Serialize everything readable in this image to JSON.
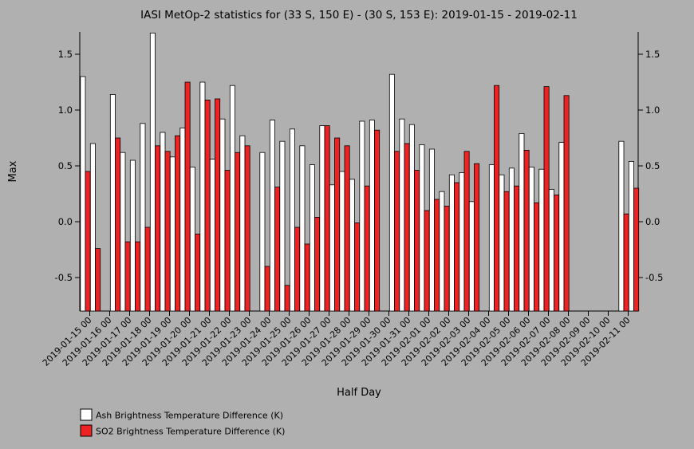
{
  "chart_data": {
    "type": "bar",
    "title": "IASI MetOp-2 statistics for (33 S, 150 E) - (30 S, 153 E): 2019-01-15 - 2019-02-11",
    "xlabel": "Half Day",
    "ylabel": "Max",
    "ylim": [
      -0.8,
      1.7
    ],
    "yticks": [
      -0.5,
      0.0,
      0.5,
      1.0,
      1.5
    ],
    "ytick_labels": [
      "-0.5",
      "0.0",
      "0.5",
      "1.0",
      "1.5"
    ],
    "legend_position": "bottom-left",
    "grid": false,
    "categories": [
      "2019-01-15 00",
      "2019-01-15 12",
      "2019-01-16 00",
      "2019-01-16 12",
      "2019-01-17 00",
      "2019-01-17 12",
      "2019-01-18 00",
      "2019-01-18 12",
      "2019-01-19 00",
      "2019-01-19 12",
      "2019-01-20 00",
      "2019-01-20 12",
      "2019-01-21 00",
      "2019-01-21 12",
      "2019-01-22 00",
      "2019-01-22 12",
      "2019-01-23 00",
      "2019-01-23 12",
      "2019-01-24 00",
      "2019-01-24 12",
      "2019-01-25 00",
      "2019-01-25 12",
      "2019-01-26 00",
      "2019-01-26 12",
      "2019-01-27 00",
      "2019-01-27 12",
      "2019-01-28 00",
      "2019-01-28 12",
      "2019-01-29 00",
      "2019-01-29 12",
      "2019-01-30 00",
      "2019-01-30 12",
      "2019-01-31 00",
      "2019-01-31 12",
      "2019-02-01 00",
      "2019-02-01 12",
      "2019-02-02 00",
      "2019-02-02 12",
      "2019-02-03 00",
      "2019-02-03 12",
      "2019-02-04 00",
      "2019-02-04 12",
      "2019-02-05 00",
      "2019-02-05 12",
      "2019-02-06 00",
      "2019-02-06 12",
      "2019-02-07 00",
      "2019-02-07 12",
      "2019-02-08 00",
      "2019-02-08 12",
      "2019-02-09 00",
      "2019-02-09 12",
      "2019-02-10 00",
      "2019-02-10 12",
      "2019-02-11 00",
      "2019-02-11 12"
    ],
    "tick_labels": [
      "2019-01-15 00",
      "2019-01-16 00",
      "2019-01-17 00",
      "2019-01-18 00",
      "2019-01-19 00",
      "2019-01-20 00",
      "2019-01-21 00",
      "2019-01-22 00",
      "2019-01-23 00",
      "2019-01-24 00",
      "2019-01-25 00",
      "2019-01-26 00",
      "2019-01-27 00",
      "2019-01-28 00",
      "2019-01-29 00",
      "2019-01-30 00",
      "2019-01-31 00",
      "2019-02-01 00",
      "2019-02-02 00",
      "2019-02-03 00",
      "2019-02-04 00",
      "2019-02-05 00",
      "2019-02-06 00",
      "2019-02-07 00",
      "2019-02-08 00",
      "2019-02-09 00",
      "2019-02-10 00",
      "2019-02-11 00"
    ],
    "series": [
      {
        "name": "Ash Brightness Temperature Difference (K)",
        "color": "#ffffff",
        "values": [
          1.3,
          0.7,
          null,
          1.14,
          0.62,
          0.55,
          0.88,
          1.69,
          0.8,
          0.58,
          0.84,
          0.49,
          1.25,
          0.56,
          0.92,
          1.22,
          0.77,
          null,
          0.62,
          0.91,
          0.72,
          0.83,
          0.68,
          0.51,
          0.86,
          0.33,
          0.45,
          0.38,
          0.9,
          0.91,
          null,
          1.32,
          0.92,
          0.87,
          0.69,
          0.65,
          0.27,
          0.42,
          0.44,
          0.18,
          null,
          0.51,
          0.42,
          0.48,
          0.79,
          0.49,
          0.47,
          0.29,
          0.71,
          null,
          null,
          null,
          null,
          null,
          0.72,
          0.54
        ]
      },
      {
        "name": "SO2 Brightness Temperature Difference (K)",
        "color": "#ee2222",
        "values": [
          0.45,
          -0.24,
          null,
          0.75,
          -0.18,
          -0.18,
          -0.05,
          0.68,
          0.63,
          0.77,
          1.25,
          -0.11,
          1.09,
          1.1,
          0.46,
          0.62,
          0.68,
          null,
          -0.4,
          0.31,
          -0.57,
          -0.05,
          -0.2,
          0.04,
          0.86,
          0.75,
          0.68,
          -0.01,
          0.32,
          0.82,
          null,
          0.63,
          0.7,
          0.46,
          0.1,
          0.2,
          0.14,
          0.35,
          0.63,
          0.52,
          null,
          1.22,
          0.27,
          0.32,
          0.64,
          0.17,
          1.21,
          0.24,
          1.13,
          null,
          null,
          null,
          null,
          null,
          0.07,
          0.3
        ]
      }
    ]
  }
}
